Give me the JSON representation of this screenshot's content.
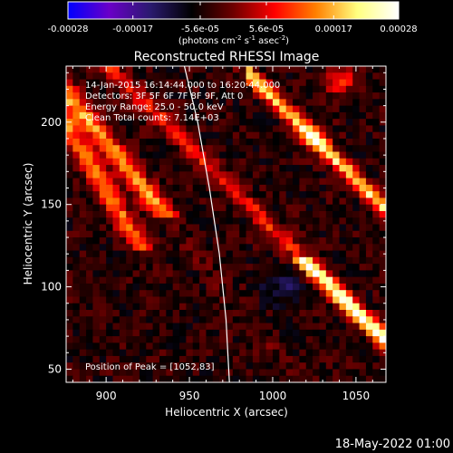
{
  "title": "Reconstructed RHESSI Image",
  "units_prefix": "(photons cm",
  "units_exp1": "-2",
  "units_mid1": " s",
  "units_exp2": "-1",
  "units_mid2": " asec",
  "units_exp3": "-2",
  "units_suffix": ")",
  "annotations": [
    "14-Jan-2015 16:14:44.000 to 16:20:44.000",
    "Detectors: 3F 5F 6F 7F 8F 9F, Att 0",
    "Energy Range: 25.0 - 50.0 keV",
    "Clean     Total counts: 7.14E+03"
  ],
  "peak_label": "Position of Peak = [1052,83]",
  "footer_date": "18-May-2022 01:00",
  "colormap_name": "rhessi-fire",
  "colormap_stops": [
    "#0000ff",
    "#6a00c8",
    "#2a1a6e",
    "#000000",
    "#6e0000",
    "#ff0000",
    "#ff8000",
    "#ffff80",
    "#ffffff"
  ],
  "colorbar": {
    "min": -0.00028,
    "max": 0.00028,
    "tick_values": [
      -0.00028,
      -0.00017,
      -5.6e-05,
      5.6e-05,
      0.00017,
      0.00028
    ],
    "tick_labels": [
      "-0.00028",
      "-0.00017",
      "-5.6e-05",
      "5.6e-05",
      "0.00017",
      "0.00028"
    ]
  },
  "chart_data": {
    "type": "heatmap",
    "title": "Reconstructed RHESSI Image",
    "xlabel": "Heliocentric X (arcsec)",
    "ylabel": "Heliocentric Y (arcsec)",
    "xlim": [
      876,
      1068
    ],
    "ylim": [
      42,
      234
    ],
    "xticks": [
      900,
      950,
      1000,
      1050
    ],
    "xtick_labels": [
      "900",
      "950",
      "1000",
      "1050"
    ],
    "yticks": [
      50,
      100,
      150,
      200
    ],
    "ytick_labels": [
      "50",
      "100",
      "150",
      "200"
    ],
    "peak": [
      1052,
      83
    ],
    "limb_curve": [
      [
        947,
        234
      ],
      [
        955,
        200
      ],
      [
        962,
        160
      ],
      [
        968,
        120
      ],
      [
        972,
        80
      ],
      [
        974,
        42
      ]
    ],
    "colorbar_range": [
      -0.00028,
      0.00028
    ],
    "grid": false
  }
}
